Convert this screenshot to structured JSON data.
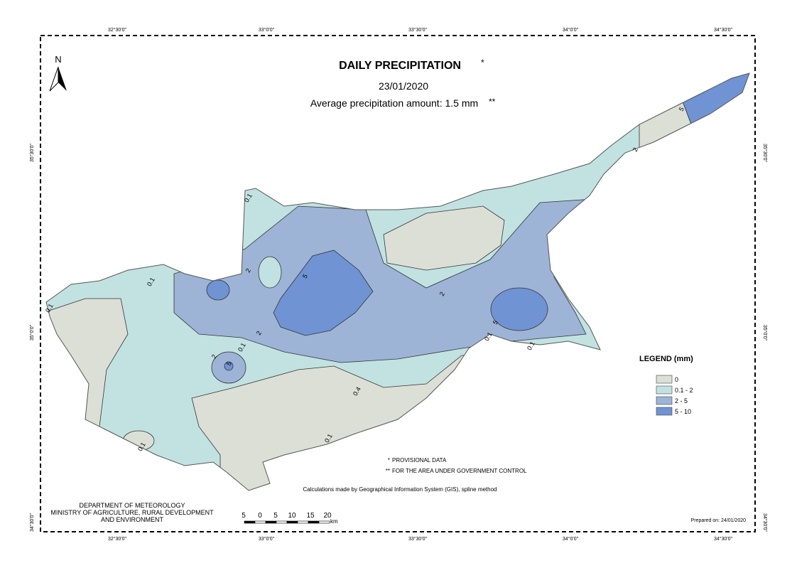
{
  "title": "DAILY PRECIPITATION",
  "title_mark": "*",
  "date": "23/01/2020",
  "average": "Average precipitation amount: 1.5 mm",
  "average_mark": "**",
  "north": "N",
  "legend": {
    "title": "LEGEND (mm)",
    "items": [
      {
        "label": "0",
        "color": "#dcdfd6"
      },
      {
        "label": "0.1 - 2",
        "color": "#c2e2e2"
      },
      {
        "label": "2 - 5",
        "color": "#9db4d6"
      },
      {
        "label": "5 - 10",
        "color": "#6f93d3"
      }
    ]
  },
  "notes": [
    "PROVISIONAL DATA",
    "FOR THE AREA UNDER GOVERNMENT CONTROL"
  ],
  "note_marks": [
    "*",
    "**"
  ],
  "method": "Calculations made by Geographical Information System (GIS), spline method",
  "prepared": "Prepared on: 24/01/2020",
  "department": [
    "DEPARTMENT OF METEOROLOGY",
    "MINISTRY OF AGRICULTURE, RURAL DEVELOPMENT",
    "AND ENVIRONMENT"
  ],
  "scale": {
    "labels": [
      "5",
      "0",
      "5",
      "10",
      "15",
      "20"
    ],
    "unit": "km"
  },
  "graticule": {
    "longitudes": [
      "32°30'0\"",
      "33°0'0\"",
      "33°30'0\"",
      "34°0'0\"",
      "34°30'0\""
    ],
    "latitudes": [
      "35°30'0\"",
      "35°0'0\"",
      "34°30'0\""
    ]
  },
  "contour_labels": [
    "0.1",
    "0.1",
    "2",
    "5",
    "2",
    "0.1",
    "5",
    "2",
    "5",
    "2",
    "0.1",
    "0.1",
    "0.4",
    "0.1",
    "0.1",
    "2",
    "5",
    "0.1"
  ]
}
